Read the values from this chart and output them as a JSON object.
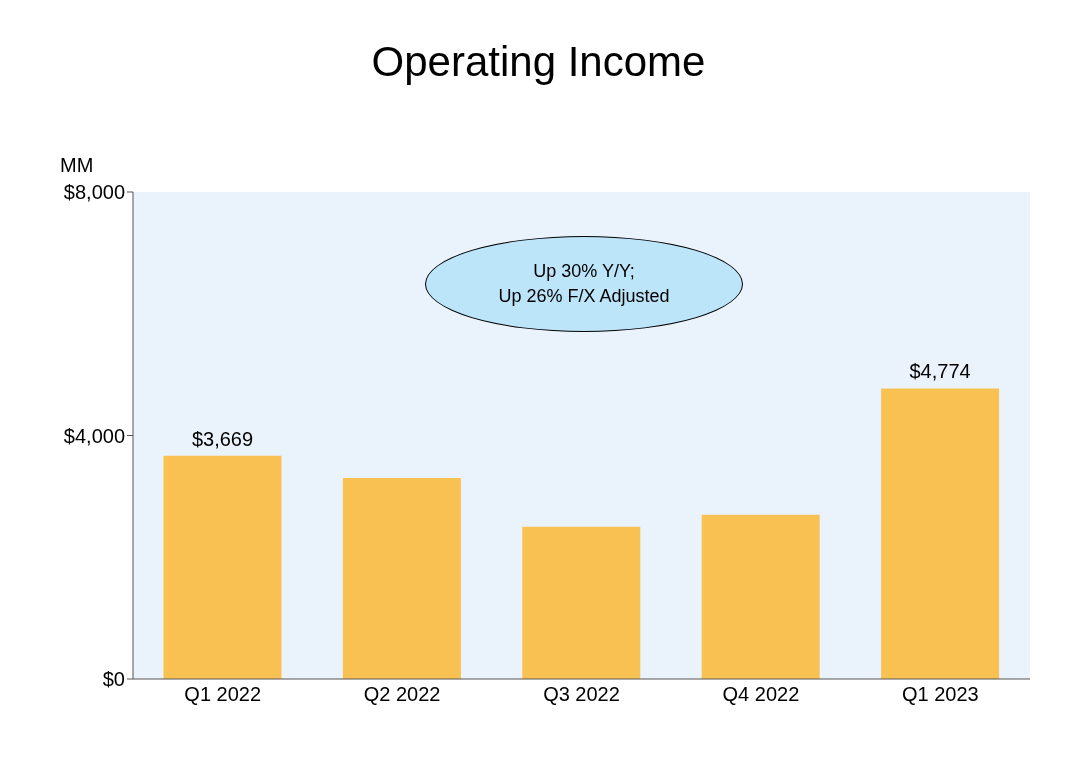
{
  "chart_data": {
    "type": "bar",
    "title": "Operating Income",
    "ylabel": "MM",
    "categories": [
      "Q1 2022",
      "Q2 2022",
      "Q3 2022",
      "Q4 2022",
      "Q1 2023"
    ],
    "values": [
      3669,
      3300,
      2500,
      2700,
      4774
    ],
    "value_labels": [
      "$3,669",
      null,
      null,
      null,
      "$4,774"
    ],
    "color": "#f9c152",
    "ylim": [
      0,
      8000
    ],
    "yticks": [
      {
        "value": 0,
        "label": "$0"
      },
      {
        "value": 4000,
        "label": "$4,000"
      },
      {
        "value": 8000,
        "label": "$8,000"
      }
    ],
    "annotations": [
      "Up 30% Y/Y;\nUp 26% F/X Adjusted"
    ],
    "grid": false
  }
}
